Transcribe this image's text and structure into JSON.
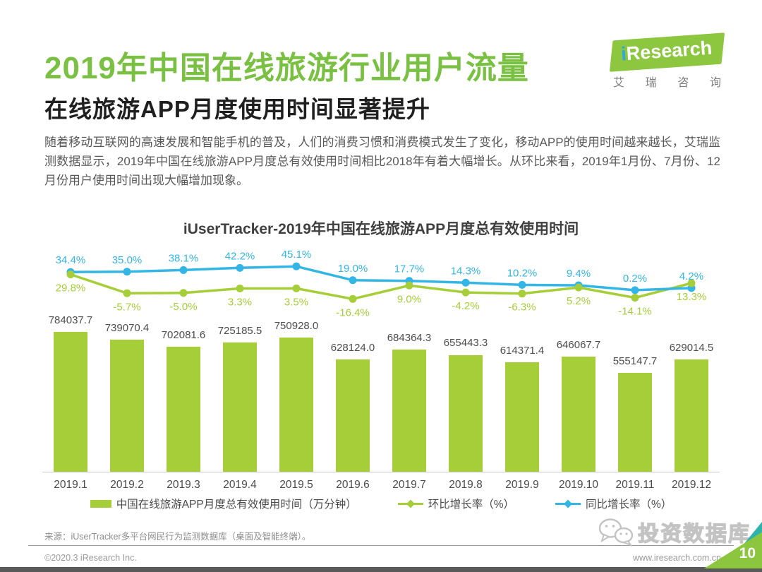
{
  "header": {
    "title": "2019年中国在线旅游行业用户流量",
    "subtitle": "在线旅游APP月度使用时间显著提升",
    "body": "随着移动互联网的高速发展和智能手机的普及，人们的消费习惯和消费模式发生了变化，移动APP的使用时间越来越长，艾瑞监测数据显示，2019年中国在线旅游APP月度总有效使用时间相比2018年有着大幅增长。从环比来看，2019年1月份、7月份、12月份用户使用时间出现大幅增加现象。"
  },
  "logo": {
    "brand_i": "i",
    "brand": "Research",
    "cn": "艾瑞咨询"
  },
  "chart_data": {
    "type": "bar+line",
    "title": "iUserTracker-2019年中国在线旅游APP月度总有效使用时间",
    "categories": [
      "2019.1",
      "2019.2",
      "2019.3",
      "2019.4",
      "2019.5",
      "2019.6",
      "2019.7",
      "2019.8",
      "2019.9",
      "2019.10",
      "2019.11",
      "2019.12"
    ],
    "series": [
      {
        "name": "中国在线旅游APP月度总有效使用时间（万分钟）",
        "type": "bar",
        "color": "#a5ce39",
        "values": [
          784037.7,
          739070.4,
          702081.6,
          725185.5,
          750928.0,
          628124.0,
          684364.3,
          655443.3,
          614371.4,
          646067.7,
          555147.7,
          629014.5
        ]
      },
      {
        "name": "环比增长率（%）",
        "type": "line",
        "color": "#a5ce39",
        "values": [
          29.8,
          -5.7,
          -5.0,
          3.3,
          3.5,
          -16.4,
          9.0,
          -4.2,
          -6.3,
          5.2,
          -14.1,
          13.3
        ]
      },
      {
        "name": "同比增长率（%）",
        "type": "line",
        "color": "#33b5e5",
        "values": [
          34.4,
          35.0,
          38.1,
          42.2,
          45.1,
          19.0,
          17.7,
          14.3,
          10.2,
          9.4,
          0.2,
          4.2
        ]
      }
    ],
    "ylim_bars": [
      0,
      784037.7
    ],
    "grid": false,
    "legend_position": "bottom"
  },
  "legend": [
    {
      "label": "中国在线旅游APP月度总有效使用时间（万分钟）",
      "marker": "bar-swatch",
      "color": "#a5ce39"
    },
    {
      "label": "环比增长率（%）",
      "marker": "line-diamond",
      "color": "#a5ce39"
    },
    {
      "label": "同比增长率（%）",
      "marker": "line-diamond",
      "color": "#33b5e5"
    }
  ],
  "source": "来源：iUserTracker多平台网民行为监测数据库（桌面及智能终端）。",
  "watermark": "投资数据库",
  "footer": {
    "copyright": "©2020.3 iResearch Inc.",
    "url": "www.iresearch.com.cn",
    "page_number": "10"
  },
  "colors": {
    "accent_green": "#7ac143",
    "bar_green": "#a5ce39",
    "line_blue": "#33b5e5"
  }
}
